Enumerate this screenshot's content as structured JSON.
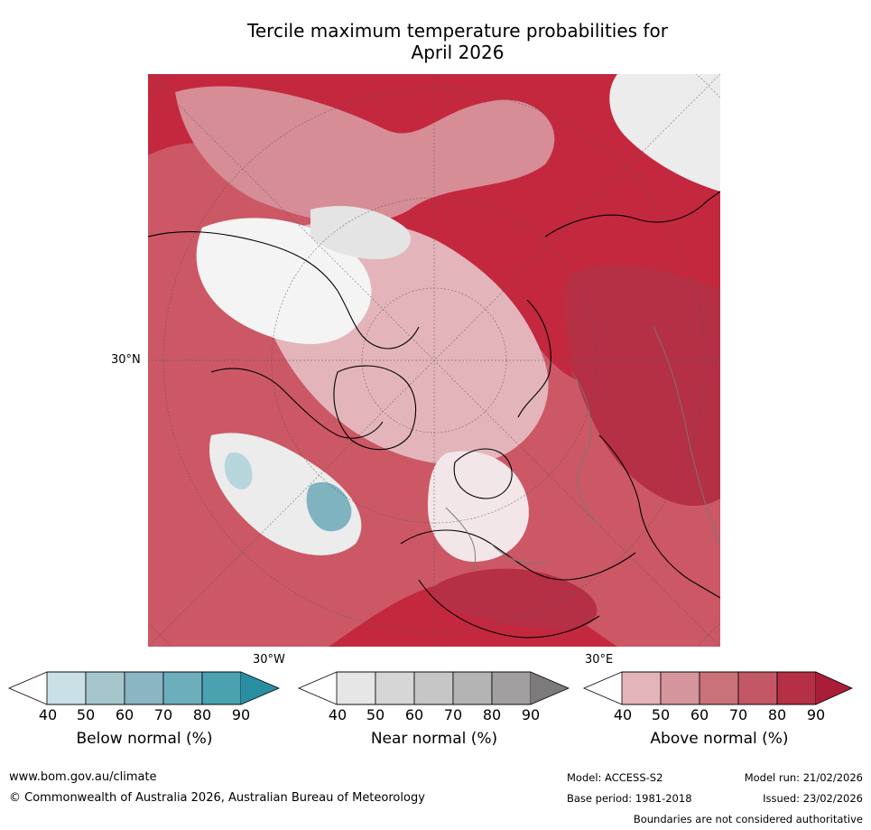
{
  "title": {
    "line1": "Tercile maximum temperature probabilities for",
    "line2": "April 2026"
  },
  "map": {
    "lat_label": "30°N",
    "lon_label_west": "30°W",
    "lon_label_east": "30°E"
  },
  "legends": [
    {
      "label": "Below normal (%)",
      "ticks": [
        "40",
        "50",
        "60",
        "70",
        "80",
        "90"
      ],
      "colors": [
        "#ffffff",
        "#c9e1e6",
        "#a6c6cd",
        "#8ab5c2",
        "#6daebd",
        "#4aa2b1",
        "#2a8ea3"
      ]
    },
    {
      "label": "Near normal (%)",
      "ticks": [
        "40",
        "50",
        "60",
        "70",
        "80",
        "90"
      ],
      "colors": [
        "#ffffff",
        "#e6e6e6",
        "#d6d6d6",
        "#c6c6c6",
        "#b4b4b4",
        "#a19f9f",
        "#7c7a7a"
      ]
    },
    {
      "label": "Above normal (%)",
      "ticks": [
        "40",
        "50",
        "60",
        "70",
        "80",
        "90"
      ],
      "colors": [
        "#ffffff",
        "#e3b5bb",
        "#d6949c",
        "#c97279",
        "#c35766",
        "#b52f45",
        "#a91d38"
      ]
    }
  ],
  "footer": {
    "url": "www.bom.gov.au/climate",
    "copyright": "© Commonwealth of Australia 2026, Australian Bureau of Meteorology",
    "model": "Model: ACCESS-S2",
    "base_period": "Base period: 1981-2018",
    "model_run": "Model run: 21/02/2026",
    "issued": "Issued: 23/02/2026",
    "disclaimer": "Boundaries are not considered authoritative"
  }
}
